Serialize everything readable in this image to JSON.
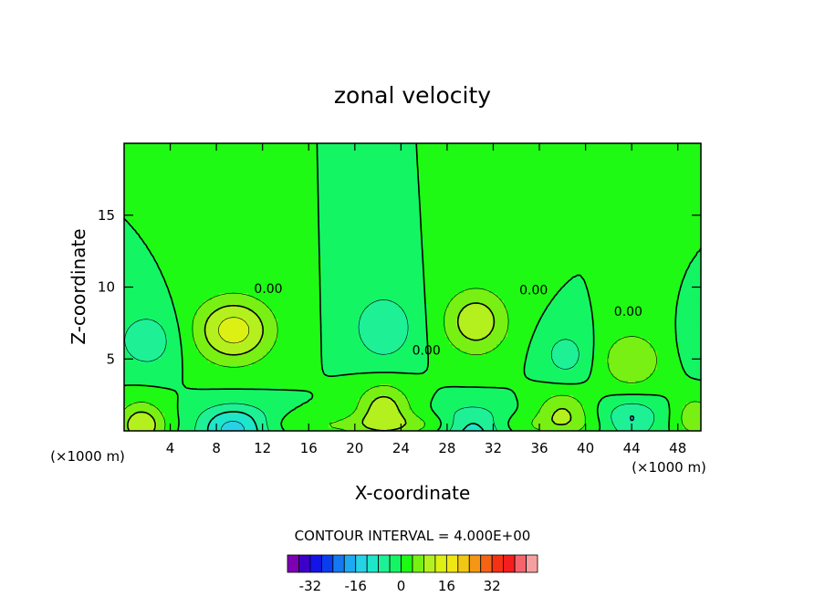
{
  "chart_data": {
    "type": "heatmap",
    "subtype": "filled-contour",
    "title": "zonal velocity",
    "xlabel": "X-coordinate",
    "ylabel": "Z-coordinate",
    "x_unit_left": "(×1000 m)",
    "x_unit_right": "(×1000 m)",
    "xlim": [
      0,
      50
    ],
    "ylim": [
      0,
      20
    ],
    "x_ticks": [
      4,
      8,
      12,
      16,
      20,
      24,
      28,
      32,
      36,
      40,
      44,
      48
    ],
    "y_ticks": [
      5,
      10,
      15
    ],
    "contour_interval_text": "CONTOUR INTERVAL = 4.000E+00",
    "contour_labels": [
      {
        "text": "0.00",
        "x": 12.5,
        "y": 9.6
      },
      {
        "text": "0.00",
        "x": 26.2,
        "y": 5.3
      },
      {
        "text": "0.00",
        "x": 35.5,
        "y": 9.5
      },
      {
        "text": "0.00",
        "x": 43.7,
        "y": 8.0
      }
    ],
    "colorbar": {
      "tick_labels": [
        "-32",
        "-16",
        "0",
        "16",
        "32"
      ],
      "tick_values": [
        -32,
        -16,
        0,
        16,
        32
      ],
      "colors": [
        "#7d00b4",
        "#3c00c8",
        "#1414e6",
        "#0a3cf0",
        "#1478f0",
        "#1eaaf0",
        "#28d2e6",
        "#1ee6c8",
        "#1ef096",
        "#14f564",
        "#1efa14",
        "#78f014",
        "#b4f01e",
        "#dcf014",
        "#f0e614",
        "#f0c814",
        "#f59614",
        "#f56414",
        "#f53214",
        "#f51e1e",
        "#f5646e",
        "#f5a0a0"
      ]
    },
    "grid": false,
    "field_sources": [
      {
        "x": 9.5,
        "y": 7.0,
        "amp": 14,
        "sx": 3.4,
        "sy": 2.3
      },
      {
        "x": 30.5,
        "y": 7.6,
        "amp": 11,
        "sx": 2.8,
        "sy": 2.3
      },
      {
        "x": 44.0,
        "y": 4.9,
        "amp": 8,
        "sx": 2.6,
        "sy": 2.0
      },
      {
        "x": 2.0,
        "y": 6.3,
        "amp": -7,
        "sx": 2.6,
        "sy": 2.0
      },
      {
        "x": 22.5,
        "y": 7.2,
        "amp": -8,
        "sx": 2.6,
        "sy": 2.3
      },
      {
        "x": 38.3,
        "y": 5.3,
        "amp": -6,
        "sx": 2.0,
        "sy": 1.7
      },
      {
        "x": 50.0,
        "y": 6.0,
        "amp": -4,
        "sx": 1.5,
        "sy": 1.5
      },
      {
        "x": 25.0,
        "y": 0.4,
        "amp": 5,
        "sx": 15.0,
        "sy": 0.8
      },
      {
        "x": 1.5,
        "y": 0.4,
        "amp": 11,
        "sx": 2.0,
        "sy": 1.6
      },
      {
        "x": 9.5,
        "y": 0.2,
        "amp": -15,
        "sx": 3.2,
        "sy": 1.5
      },
      {
        "x": 22.5,
        "y": 1.6,
        "amp": 10,
        "sx": 2.3,
        "sy": 1.7
      },
      {
        "x": 30.2,
        "y": 0.2,
        "amp": -13,
        "sx": 2.8,
        "sy": 1.4
      },
      {
        "x": 38.0,
        "y": 1.3,
        "amp": 8,
        "sx": 2.2,
        "sy": 1.5
      },
      {
        "x": 44.0,
        "y": 0.8,
        "amp": -9,
        "sx": 2.4,
        "sy": 1.4
      },
      {
        "x": 49.5,
        "y": 1.0,
        "amp": 7,
        "sx": 1.6,
        "sy": 1.4
      }
    ]
  }
}
